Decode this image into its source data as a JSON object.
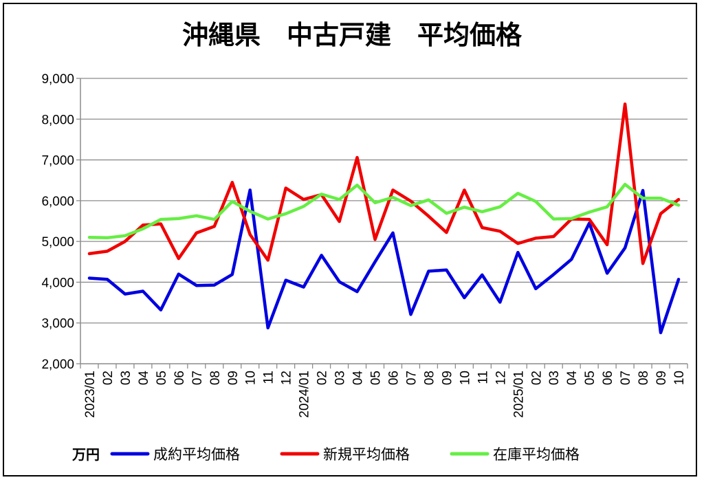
{
  "chart_data": {
    "type": "line",
    "title": "沖縄県　中古戸建　平均価格",
    "unit_label": "万円",
    "ylim": [
      2000,
      9000
    ],
    "yticks": [
      "2,000",
      "3,000",
      "4,000",
      "5,000",
      "6,000",
      "7,000",
      "8,000",
      "9,000"
    ],
    "grid": true,
    "legend_position": "bottom",
    "categories": [
      "2023/01",
      "02",
      "03",
      "04",
      "05",
      "06",
      "07",
      "08",
      "09",
      "10",
      "11",
      "12",
      "2024/01",
      "02",
      "03",
      "04",
      "05",
      "06",
      "07",
      "08",
      "09",
      "10",
      "11",
      "12",
      "2025/01",
      "02",
      "03",
      "04",
      "05",
      "06",
      "07",
      "08",
      "09",
      "10"
    ],
    "series": [
      {
        "name": "成約平均価格",
        "color": "#0000e0",
        "values": [
          4100,
          4070,
          3710,
          3780,
          3320,
          4200,
          3920,
          3930,
          4190,
          6260,
          2880,
          4050,
          3880,
          4660,
          4010,
          3770,
          4500,
          5210,
          3210,
          4270,
          4300,
          3620,
          4180,
          3510,
          4730,
          3840,
          4190,
          4560,
          5450,
          4220,
          4840,
          6250,
          2760,
          4070
        ]
      },
      {
        "name": "新規平均価格",
        "color": "#f00000",
        "values": [
          4700,
          4760,
          5000,
          5400,
          5430,
          4580,
          5210,
          5370,
          6450,
          5170,
          4540,
          6310,
          6030,
          6150,
          5490,
          7060,
          5050,
          6260,
          5990,
          5620,
          5220,
          6260,
          5340,
          5250,
          4950,
          5080,
          5120,
          5550,
          5540,
          4920,
          8370,
          4460,
          5680,
          6030
        ]
      },
      {
        "name": "在庫平均価格",
        "color": "#66ee44",
        "values": [
          5100,
          5090,
          5140,
          5310,
          5540,
          5560,
          5630,
          5540,
          5980,
          5740,
          5550,
          5680,
          5860,
          6160,
          6030,
          6380,
          5950,
          6080,
          5880,
          6020,
          5690,
          5840,
          5730,
          5850,
          6180,
          5980,
          5550,
          5560,
          5720,
          5850,
          6400,
          6060,
          6060,
          5890
        ]
      }
    ]
  }
}
